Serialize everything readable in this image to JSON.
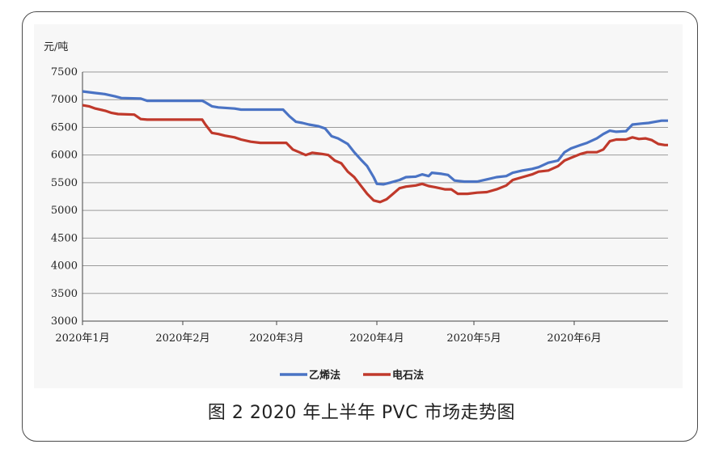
{
  "caption": "图 2  2020 年上半年 PVC 市场走势图",
  "chart_data": {
    "type": "line",
    "ylabel": "元/吨",
    "ylim": [
      3000,
      7500
    ],
    "yticks": [
      3000,
      3500,
      4000,
      4500,
      5000,
      5500,
      6000,
      6500,
      7000,
      7500
    ],
    "xlim": [
      "2020-01-01",
      "2020-06-30"
    ],
    "x_tick_labels": [
      "2020年1月",
      "2020年2月",
      "2020年3月",
      "2020年4月",
      "2020年5月",
      "2020年6月"
    ],
    "grid": "horizontal",
    "legend_position": "bottom",
    "series": [
      {
        "name": "乙烯法",
        "color": "#4a73c4",
        "points": [
          [
            "2020-01-01",
            7150
          ],
          [
            "2020-01-05",
            7120
          ],
          [
            "2020-01-08",
            7100
          ],
          [
            "2020-01-11",
            7060
          ],
          [
            "2020-01-13",
            7030
          ],
          [
            "2020-01-19",
            7020
          ],
          [
            "2020-01-21",
            6980
          ],
          [
            "2020-02-01",
            6980
          ],
          [
            "2020-02-07",
            6980
          ],
          [
            "2020-02-08",
            6950
          ],
          [
            "2020-02-10",
            6880
          ],
          [
            "2020-02-12",
            6860
          ],
          [
            "2020-02-17",
            6840
          ],
          [
            "2020-02-19",
            6820
          ],
          [
            "2020-03-03",
            6820
          ],
          [
            "2020-03-05",
            6700
          ],
          [
            "2020-03-07",
            6600
          ],
          [
            "2020-03-09",
            6580
          ],
          [
            "2020-03-11",
            6550
          ],
          [
            "2020-03-14",
            6520
          ],
          [
            "2020-03-16",
            6480
          ],
          [
            "2020-03-18",
            6340
          ],
          [
            "2020-03-20",
            6300
          ],
          [
            "2020-03-23",
            6200
          ],
          [
            "2020-03-25",
            6050
          ],
          [
            "2020-03-27",
            5920
          ],
          [
            "2020-03-29",
            5800
          ],
          [
            "2020-03-31",
            5600
          ],
          [
            "2020-04-01",
            5480
          ],
          [
            "2020-04-03",
            5470
          ],
          [
            "2020-04-05",
            5500
          ],
          [
            "2020-04-08",
            5550
          ],
          [
            "2020-04-10",
            5600
          ],
          [
            "2020-04-13",
            5610
          ],
          [
            "2020-04-15",
            5650
          ],
          [
            "2020-04-17",
            5620
          ],
          [
            "2020-04-18",
            5680
          ],
          [
            "2020-04-21",
            5660
          ],
          [
            "2020-04-23",
            5640
          ],
          [
            "2020-04-25",
            5540
          ],
          [
            "2020-04-28",
            5520
          ],
          [
            "2020-05-02",
            5520
          ],
          [
            "2020-05-05",
            5560
          ],
          [
            "2020-05-08",
            5600
          ],
          [
            "2020-05-11",
            5620
          ],
          [
            "2020-05-13",
            5680
          ],
          [
            "2020-05-16",
            5720
          ],
          [
            "2020-05-19",
            5750
          ],
          [
            "2020-05-21",
            5780
          ],
          [
            "2020-05-24",
            5860
          ],
          [
            "2020-05-27",
            5900
          ],
          [
            "2020-05-29",
            6050
          ],
          [
            "2020-05-31",
            6120
          ],
          [
            "2020-06-03",
            6180
          ],
          [
            "2020-06-05",
            6220
          ],
          [
            "2020-06-08",
            6300
          ],
          [
            "2020-06-10",
            6380
          ],
          [
            "2020-06-12",
            6440
          ],
          [
            "2020-06-14",
            6420
          ],
          [
            "2020-06-17",
            6430
          ],
          [
            "2020-06-19",
            6550
          ],
          [
            "2020-06-22",
            6570
          ],
          [
            "2020-06-24",
            6580
          ],
          [
            "2020-06-26",
            6600
          ],
          [
            "2020-06-28",
            6620
          ],
          [
            "2020-06-30",
            6620
          ]
        ]
      },
      {
        "name": "电石法",
        "color": "#c0392b",
        "points": [
          [
            "2020-01-01",
            6900
          ],
          [
            "2020-01-03",
            6880
          ],
          [
            "2020-01-05",
            6840
          ],
          [
            "2020-01-08",
            6800
          ],
          [
            "2020-01-10",
            6760
          ],
          [
            "2020-01-12",
            6740
          ],
          [
            "2020-01-17",
            6730
          ],
          [
            "2020-01-19",
            6650
          ],
          [
            "2020-01-21",
            6640
          ],
          [
            "2020-02-07",
            6640
          ],
          [
            "2020-02-08",
            6550
          ],
          [
            "2020-02-10",
            6400
          ],
          [
            "2020-02-12",
            6380
          ],
          [
            "2020-02-14",
            6350
          ],
          [
            "2020-02-17",
            6320
          ],
          [
            "2020-02-19",
            6280
          ],
          [
            "2020-02-22",
            6240
          ],
          [
            "2020-02-25",
            6220
          ],
          [
            "2020-03-04",
            6220
          ],
          [
            "2020-03-06",
            6100
          ],
          [
            "2020-03-08",
            6050
          ],
          [
            "2020-03-10",
            6000
          ],
          [
            "2020-03-12",
            6040
          ],
          [
            "2020-03-15",
            6020
          ],
          [
            "2020-03-17",
            6000
          ],
          [
            "2020-03-19",
            5900
          ],
          [
            "2020-03-21",
            5850
          ],
          [
            "2020-03-23",
            5700
          ],
          [
            "2020-03-25",
            5600
          ],
          [
            "2020-03-27",
            5450
          ],
          [
            "2020-03-29",
            5300
          ],
          [
            "2020-03-31",
            5180
          ],
          [
            "2020-04-02",
            5150
          ],
          [
            "2020-04-04",
            5200
          ],
          [
            "2020-04-06",
            5300
          ],
          [
            "2020-04-08",
            5400
          ],
          [
            "2020-04-10",
            5430
          ],
          [
            "2020-04-13",
            5450
          ],
          [
            "2020-04-15",
            5480
          ],
          [
            "2020-04-17",
            5440
          ],
          [
            "2020-04-19",
            5420
          ],
          [
            "2020-04-22",
            5380
          ],
          [
            "2020-04-24",
            5380
          ],
          [
            "2020-04-26",
            5300
          ],
          [
            "2020-04-29",
            5300
          ],
          [
            "2020-05-02",
            5320
          ],
          [
            "2020-05-05",
            5330
          ],
          [
            "2020-05-08",
            5380
          ],
          [
            "2020-05-11",
            5450
          ],
          [
            "2020-05-13",
            5550
          ],
          [
            "2020-05-16",
            5600
          ],
          [
            "2020-05-19",
            5650
          ],
          [
            "2020-05-21",
            5700
          ],
          [
            "2020-05-24",
            5720
          ],
          [
            "2020-05-27",
            5800
          ],
          [
            "2020-05-29",
            5900
          ],
          [
            "2020-05-31",
            5950
          ],
          [
            "2020-06-03",
            6020
          ],
          [
            "2020-06-05",
            6050
          ],
          [
            "2020-06-08",
            6050
          ],
          [
            "2020-06-10",
            6100
          ],
          [
            "2020-06-12",
            6250
          ],
          [
            "2020-06-14",
            6280
          ],
          [
            "2020-06-17",
            6280
          ],
          [
            "2020-06-19",
            6320
          ],
          [
            "2020-06-21",
            6290
          ],
          [
            "2020-06-23",
            6300
          ],
          [
            "2020-06-25",
            6270
          ],
          [
            "2020-06-27",
            6200
          ],
          [
            "2020-06-29",
            6180
          ],
          [
            "2020-06-30",
            6180
          ]
        ]
      }
    ]
  }
}
